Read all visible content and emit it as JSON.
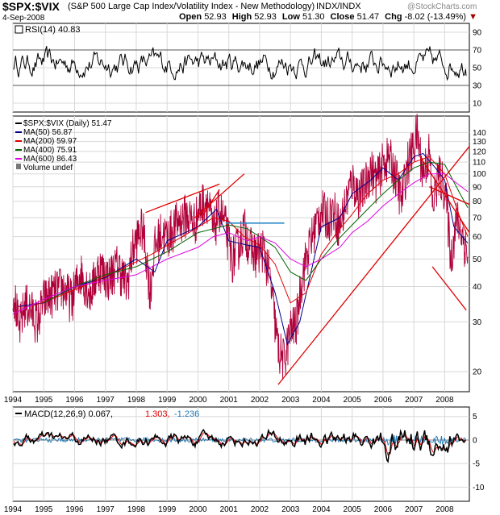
{
  "header": {
    "symbol": "$SPX:$VIX",
    "description": "(S&P 500 Large Cap Index/Volatility Index - New Methodology)",
    "exchange": "INDX/INDX",
    "date": "4-Sep-2008",
    "watermark": "@StockCharts.com",
    "open_label": "Open",
    "open": "52.93",
    "high_label": "High",
    "high": "52.93",
    "low_label": "Low",
    "low": "51.30",
    "close_label": "Close",
    "close": "51.47",
    "chg_label": "Chg",
    "chg": "-8.02 (-13.49%)"
  },
  "colors": {
    "price": "#b0003a",
    "ma50": "#00008b",
    "ma200": "#e00000",
    "ma400": "#006400",
    "ma600": "#e000e0",
    "trendline": "#e00000",
    "resistance": "#2a8ac8",
    "macd_hist": "#1f77b4",
    "grid": "#d8d8d8"
  },
  "chart_data": [
    {
      "type": "line",
      "panel": "rsi",
      "legend": "RSI(14) 40.83",
      "ylim": [
        0,
        100
      ],
      "yticks": [
        10,
        30,
        50,
        70,
        90
      ],
      "reference_lines": [
        30,
        70
      ],
      "last_value": 40.83
    },
    {
      "type": "line",
      "panel": "price",
      "scale": "log",
      "ylim": [
        17,
        160
      ],
      "yticks": [
        20,
        30,
        40,
        50,
        60,
        70,
        80,
        90,
        100,
        110,
        120,
        130,
        140
      ],
      "xlim": [
        1994.0,
        2008.8
      ],
      "xticks": [
        "1994",
        "1995",
        "1996",
        "1997",
        "1998",
        "1999",
        "2000",
        "2001",
        "2002",
        "2003",
        "2004",
        "2005",
        "2006",
        "2007",
        "2008"
      ],
      "legend": [
        {
          "name": "$SPX:$VIX (Daily) 51.47",
          "color": "#000000"
        },
        {
          "name": "MA(50) 56.87",
          "color": "#00008b"
        },
        {
          "name": "MA(200) 59.97",
          "color": "#e00000"
        },
        {
          "name": "MA(400) 75.91",
          "color": "#006400"
        },
        {
          "name": "MA(600) 86.43",
          "color": "#e000e0"
        },
        {
          "name": "Volume undef",
          "color": "#555555"
        }
      ],
      "series": [
        {
          "name": "$SPX:$VIX (Daily) 51.47",
          "x": [
            1994.0,
            1994.2,
            1994.4,
            1994.6,
            1994.8,
            1995.0,
            1995.3,
            1995.6,
            1995.9,
            1996.2,
            1996.5,
            1996.8,
            1997.1,
            1997.4,
            1997.7,
            1997.9,
            1998.2,
            1998.45,
            1998.6,
            1998.8,
            1999.0,
            1999.3,
            1999.6,
            1999.9,
            2000.1,
            2000.3,
            2000.5,
            2000.7,
            2000.9,
            2001.1,
            2001.3,
            2001.5,
            2001.7,
            2001.9,
            2002.1,
            2002.3,
            2002.5,
            2002.6,
            2002.8,
            2003.0,
            2003.2,
            2003.4,
            2003.6,
            2003.8,
            2004.0,
            2004.2,
            2004.4,
            2004.6,
            2004.8,
            2005.0,
            2005.2,
            2005.4,
            2005.6,
            2005.8,
            2006.0,
            2006.2,
            2006.4,
            2006.6,
            2006.8,
            2007.0,
            2007.1,
            2007.3,
            2007.5,
            2007.6,
            2007.8,
            2008.0,
            2008.2,
            2008.4,
            2008.6,
            2008.75
          ],
          "y": [
            40,
            28,
            35,
            33,
            30,
            36,
            38,
            40,
            36,
            45,
            38,
            47,
            43,
            48,
            40,
            55,
            65,
            38,
            55,
            62,
            60,
            67,
            72,
            68,
            78,
            82,
            62,
            76,
            65,
            50,
            55,
            65,
            55,
            52,
            55,
            45,
            30,
            24,
            22,
            28,
            30,
            45,
            55,
            65,
            75,
            70,
            75,
            65,
            80,
            95,
            85,
            90,
            105,
            95,
            110,
            115,
            100,
            80,
            110,
            125,
            140,
            100,
            120,
            75,
            100,
            90,
            50,
            70,
            60,
            51.47
          ]
        },
        {
          "name": "MA(50) 56.87",
          "x": [
            1994.2,
            1995.0,
            1996.0,
            1997.0,
            1998.0,
            1998.6,
            1999.0,
            2000.0,
            2000.6,
            2001.0,
            2001.6,
            2002.0,
            2002.5,
            2002.9,
            2003.3,
            2004.0,
            2004.6,
            2005.0,
            2005.6,
            2006.0,
            2006.5,
            2007.0,
            2007.3,
            2007.7,
            2008.0,
            2008.3,
            2008.75
          ],
          "y": [
            34,
            35,
            40,
            43,
            50,
            45,
            58,
            65,
            75,
            58,
            56,
            55,
            38,
            25,
            30,
            65,
            70,
            85,
            95,
            105,
            95,
            115,
            118,
            105,
            95,
            65,
            56.87
          ]
        },
        {
          "name": "MA(200) 59.97",
          "x": [
            1994.6,
            1995.5,
            1996.5,
            1997.5,
            1998.5,
            1999.5,
            2000.5,
            2001.0,
            2001.5,
            2002.0,
            2002.5,
            2003.0,
            2003.5,
            2004.0,
            2004.5,
            2005.0,
            2005.5,
            2006.0,
            2006.5,
            2007.0,
            2007.5,
            2008.0,
            2008.5,
            2008.75
          ],
          "y": [
            34,
            37,
            41,
            46,
            52,
            60,
            70,
            68,
            60,
            56,
            48,
            35,
            38,
            52,
            62,
            72,
            85,
            95,
            100,
            110,
            115,
            100,
            70,
            59.97
          ]
        },
        {
          "name": "MA(400) 75.91",
          "x": [
            1995.0,
            1996.0,
            1997.0,
            1998.0,
            1999.0,
            2000.0,
            2001.0,
            2001.6,
            2002.0,
            2002.5,
            2003.0,
            2003.5,
            2004.0,
            2004.5,
            2005.0,
            2005.5,
            2006.0,
            2006.5,
            2007.0,
            2007.5,
            2008.0,
            2008.5,
            2008.75
          ],
          "y": [
            35,
            40,
            44,
            47,
            53,
            62,
            66,
            64,
            60,
            55,
            45,
            42,
            50,
            58,
            66,
            75,
            85,
            95,
            105,
            110,
            108,
            85,
            75.91
          ]
        },
        {
          "name": "MA(600) 86.43",
          "x": [
            1994.0,
            1995.0,
            1996.0,
            1997.0,
            1998.0,
            1999.0,
            2000.0,
            2000.5,
            2001.0,
            2001.6,
            2002.0,
            2002.5,
            2003.0,
            2003.5,
            2004.0,
            2004.6,
            2005.0,
            2005.5,
            2006.0,
            2006.5,
            2007.0,
            2007.5,
            2008.0,
            2008.75
          ],
          "y": [
            32,
            36,
            40,
            42,
            44,
            50,
            55,
            60,
            62,
            58,
            60,
            57,
            50,
            47,
            50,
            55,
            62,
            68,
            77,
            85,
            93,
            100,
            100,
            86.43
          ]
        }
      ],
      "annotations": [
        {
          "kind": "trendline",
          "color": "#e00000",
          "x": [
            1998.3,
            2000.7
          ],
          "y": [
            73,
            92
          ]
        },
        {
          "kind": "trendline",
          "color": "#e00000",
          "x": [
            1999.9,
            2001.5
          ],
          "y": [
            70,
            100
          ]
        },
        {
          "kind": "trendline",
          "color": "#e00000",
          "x": [
            2000.1,
            2000.7
          ],
          "y": [
            70,
            88
          ]
        },
        {
          "kind": "trendline",
          "color": "#e00000",
          "x": [
            2002.6,
            2008.8
          ],
          "y": [
            18,
            125
          ]
        },
        {
          "kind": "trendline",
          "color": "#e00000",
          "x": [
            2007.2,
            2008.8
          ],
          "y": [
            115,
            62
          ]
        },
        {
          "kind": "trendline",
          "color": "#e00000",
          "x": [
            2007.5,
            2008.8
          ],
          "y": [
            90,
            78
          ]
        },
        {
          "kind": "trendline",
          "color": "#e00000",
          "x": [
            2007.6,
            2008.7
          ],
          "y": [
            47,
            33
          ]
        },
        {
          "kind": "resistance",
          "color": "#2a8ac8",
          "x": [
            2000.9,
            2002.8
          ],
          "y": [
            67,
            67
          ]
        }
      ]
    },
    {
      "type": "line",
      "panel": "macd",
      "legend": "MACD(12,26,9) 0.067, 1.303, -1.236",
      "legend_macd": "MACD(12,26,9) 0.067,",
      "legend_signal": "1.303,",
      "legend_hist": "-1.236",
      "ylim": [
        -13,
        7
      ],
      "yticks": [
        5,
        0,
        -5,
        -10
      ],
      "values": {
        "macd": 0.067,
        "signal": 1.303,
        "histogram": -1.236
      }
    }
  ]
}
